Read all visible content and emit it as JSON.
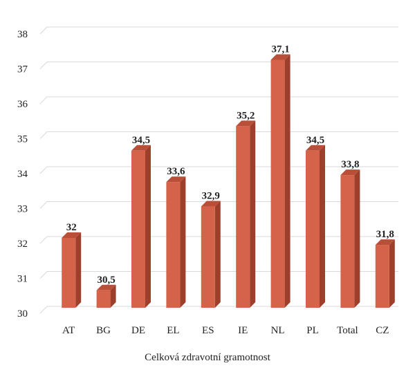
{
  "chart_data": {
    "type": "bar",
    "categories": [
      "AT",
      "BG",
      "DE",
      "EL",
      "ES",
      "IE",
      "NL",
      "PL",
      "Total",
      "CZ"
    ],
    "values": [
      32,
      30.5,
      34.5,
      33.6,
      32.9,
      35.2,
      37.1,
      34.5,
      33.8,
      31.8
    ],
    "value_labels": [
      "32",
      "30,5",
      "34,5",
      "33,6",
      "32,9",
      "35,2",
      "37,1",
      "34,5",
      "33,8",
      "31,8"
    ],
    "y_ticks": [
      "30",
      "31",
      "32",
      "33",
      "34",
      "35",
      "36",
      "37",
      "38"
    ],
    "ylim": [
      30,
      38
    ],
    "xlabel": "Celková zdravotní gramotnost",
    "ylabel": "",
    "title": "",
    "grid": true,
    "bar_style": "3d",
    "colors": {
      "bar_front": "#d4634a",
      "bar_side": "#9e3f2c",
      "bar_top": "#b94f38",
      "grid": "#d9d9d9"
    }
  }
}
